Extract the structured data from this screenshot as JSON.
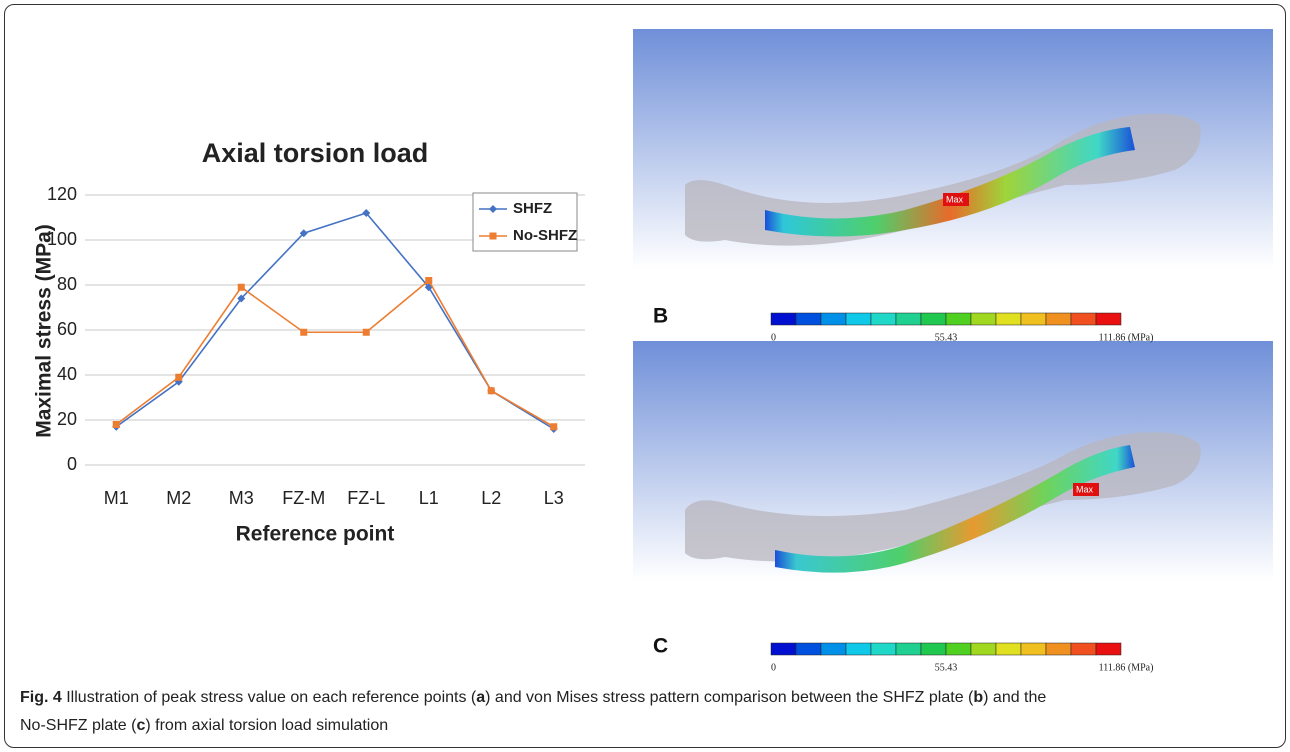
{
  "chart_data": {
    "type": "line",
    "title": "Axial torsion load",
    "x_label": "Reference point",
    "y_label": "Maximal stress (MPa)",
    "categories": [
      "M1",
      "M2",
      "M3",
      "FZ-M",
      "FZ-L",
      "L1",
      "L2",
      "L3"
    ],
    "series": [
      {
        "name": "SHFZ",
        "color": "#4472c4",
        "marker": "diamond",
        "values": [
          17,
          37,
          74,
          103,
          112,
          79,
          33,
          16
        ]
      },
      {
        "name": "No-SHFZ",
        "color": "#ed7d31",
        "marker": "square",
        "values": [
          18,
          39,
          79,
          59,
          59,
          82,
          33,
          17
        ]
      }
    ],
    "ylim": [
      0,
      120
    ],
    "yticks": [
      0,
      20,
      40,
      60,
      80,
      100,
      120
    ],
    "grid": true,
    "legend": "upper right"
  },
  "panels": [
    {
      "label": "B",
      "max_tag": "Max",
      "colorbar_labels": [
        "0",
        "55.43",
        "111.86 (MPa)"
      ]
    },
    {
      "label": "C",
      "max_tag": "Max",
      "colorbar_labels": [
        "0",
        "55.43",
        "111.86 (MPa)"
      ]
    }
  ],
  "caption": {
    "figure": "Fig. 4",
    "parts": [
      "Illustration of peak stress value on each reference points (",
      "a",
      ") and von Mises stress pattern comparison between the SHFZ plate (",
      "b",
      ") and the",
      "No-SHFZ plate (",
      "c",
      ") from axial torsion load simulation"
    ]
  }
}
